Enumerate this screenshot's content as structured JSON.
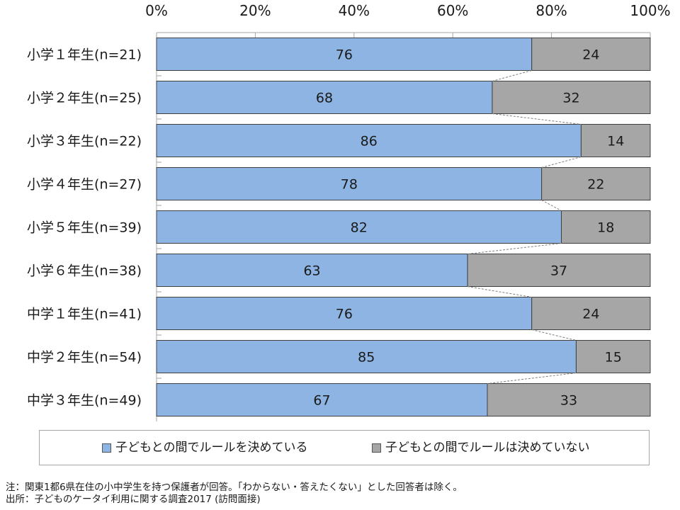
{
  "chart_data": {
    "type": "bar",
    "orientation": "horizontal",
    "stacked": true,
    "categories": [
      "小学１年生(n=21)",
      "小学２年生(n=25)",
      "小学３年生(n=22)",
      "小学４年生(n=27)",
      "小学５年生(n=39)",
      "小学６年生(n=38)",
      "中学１年生(n=41)",
      "中学２年生(n=54)",
      "中学３年生(n=49)"
    ],
    "series": [
      {
        "name": "子どもとの間でルールを決めている",
        "color": "#8db4e2",
        "values": [
          76,
          68,
          86,
          78,
          82,
          63,
          76,
          85,
          67
        ]
      },
      {
        "name": "子どもとの間でルールは決めていない",
        "color": "#a6a6a6",
        "values": [
          24,
          32,
          14,
          22,
          18,
          37,
          24,
          15,
          33
        ]
      }
    ],
    "xlim": [
      0,
      100
    ],
    "xticks": [
      "0%",
      "20%",
      "40%",
      "60%",
      "80%",
      "100%"
    ],
    "tick_axis_position": "top",
    "series_lines": true,
    "legend_position": "bottom",
    "grid": false
  },
  "notes": {
    "line1": "注：関東1都6県在住の小中学生を持つ保護者が回答。「わからない・答えたくない」とした回答者は除く。",
    "line2": "出所：子どものケータイ利用に関する調査2017 (訪問面接)"
  }
}
